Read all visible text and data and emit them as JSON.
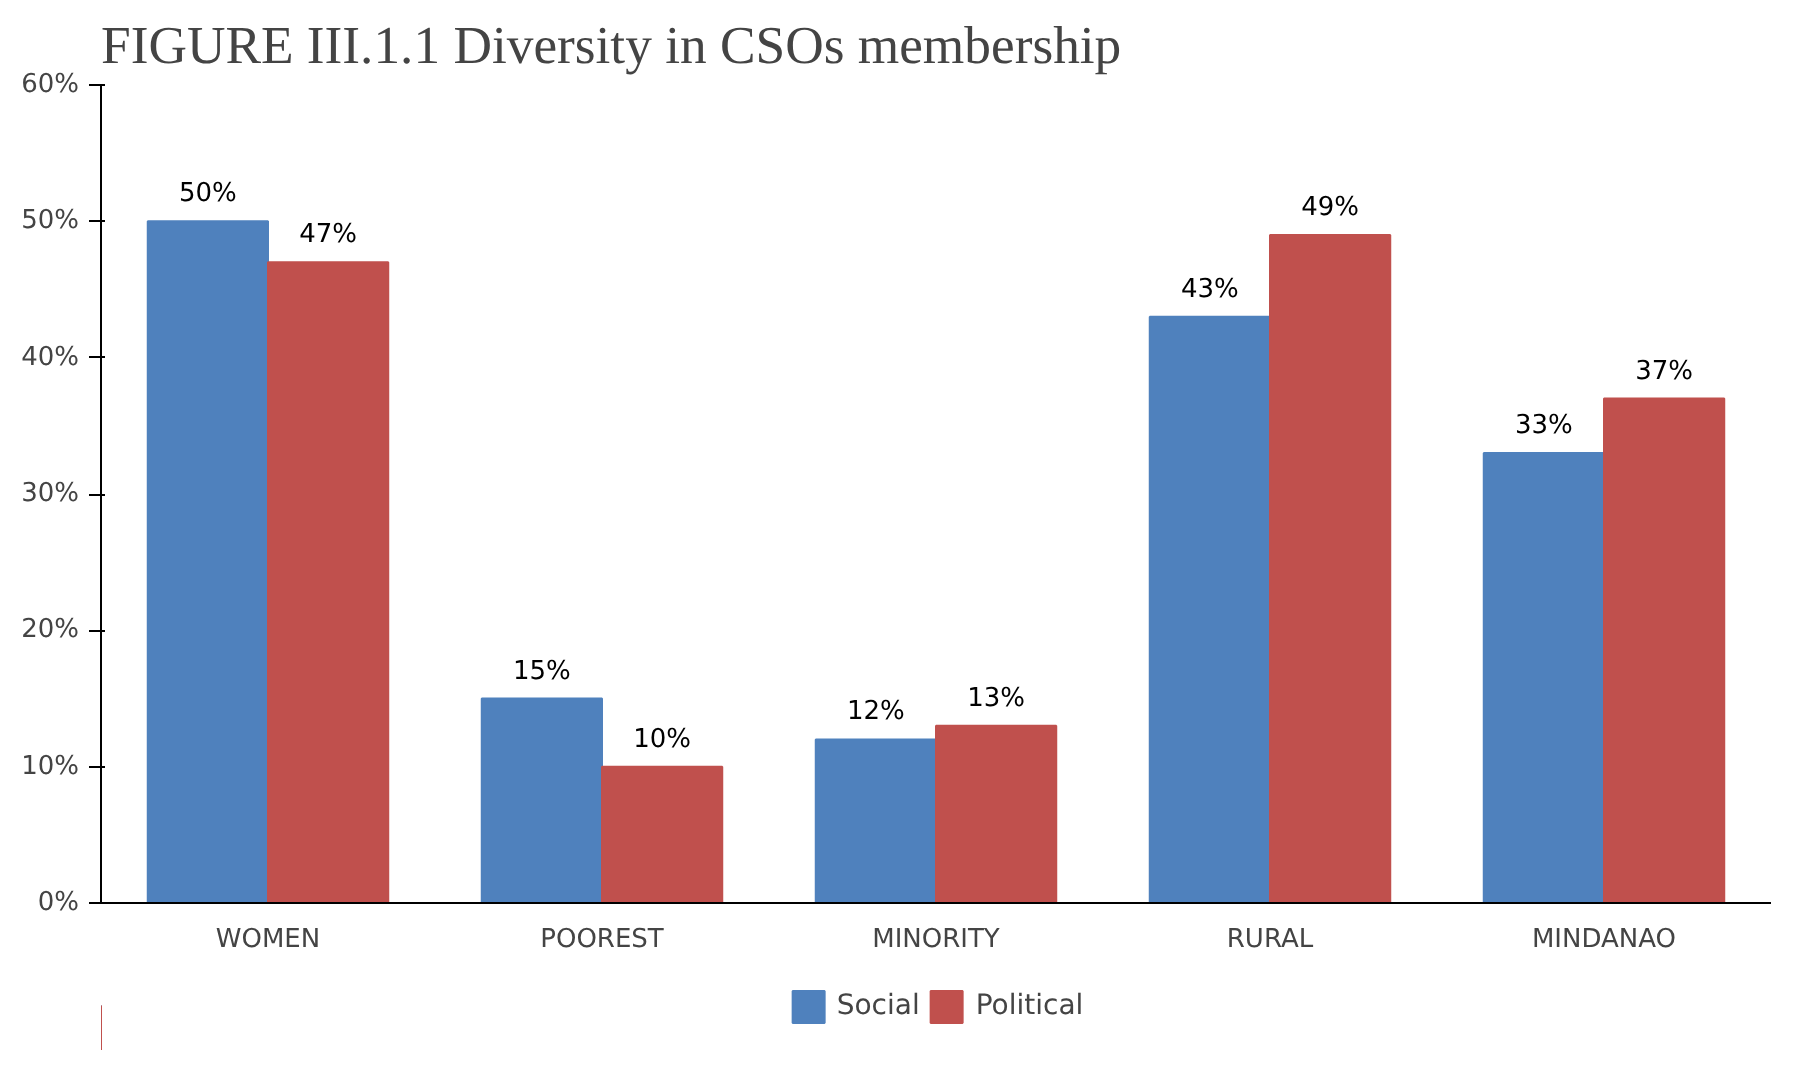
{
  "chart_data": {
    "type": "bar",
    "title": "FIGURE III.1.1 Diversity in CSOs membership",
    "categories": [
      "WOMEN",
      "POOREST",
      "MINORITY",
      "RURAL",
      "MINDANAO"
    ],
    "series": [
      {
        "name": "Social",
        "color": "#4f81bd",
        "values": [
          50,
          15,
          12,
          43,
          33
        ]
      },
      {
        "name": "Political",
        "color": "#c0504d",
        "values": [
          47,
          10,
          13,
          49,
          37
        ]
      }
    ],
    "ylim": [
      0,
      60
    ],
    "yticks": [
      {
        "value": 0,
        "label": "0%"
      },
      {
        "value": 10,
        "label": "10%"
      },
      {
        "value": 20,
        "label": "20%"
      },
      {
        "value": 30,
        "label": "30%"
      },
      {
        "value": 40,
        "label": "40%"
      },
      {
        "value": 50,
        "label": "50%"
      },
      {
        "value": 60,
        "label": "60%"
      }
    ],
    "value_labels": [
      [
        "50%",
        "15%",
        "12%",
        "43%",
        "33%"
      ],
      [
        "47%",
        "10%",
        "13%",
        "49%",
        "37%"
      ]
    ],
    "grid": false,
    "legend": "bottom"
  }
}
